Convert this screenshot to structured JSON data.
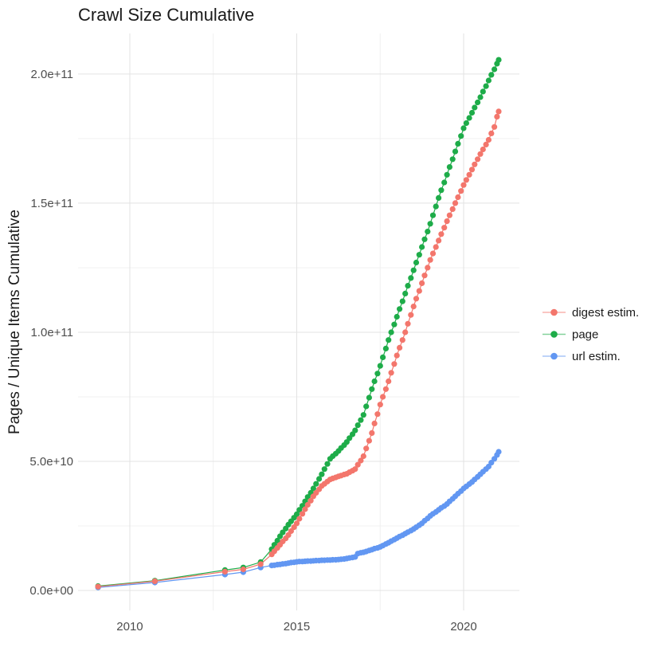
{
  "header": {
    "title": "Crawl Size Cumulative"
  },
  "chart_data": {
    "type": "scatter",
    "title": "Crawl Size Cumulative",
    "xlabel": "",
    "ylabel": "Pages / Unique Items Cumulative",
    "units_note": "values in billions (1e9) of pages / unique items",
    "xlim": [
      2008.45,
      2021.67
    ],
    "ylim_e9": [
      -7.7,
      215.7
    ],
    "x_ticks": [
      {
        "value": 2010,
        "label": "2010"
      },
      {
        "value": 2015,
        "label": "2015"
      },
      {
        "value": 2020,
        "label": "2020"
      }
    ],
    "y_ticks": [
      {
        "value_e9": 0,
        "label": "0.0e+00"
      },
      {
        "value_e9": 50,
        "label": "5.0e+10"
      },
      {
        "value_e9": 100,
        "label": "1.0e+11"
      },
      {
        "value_e9": 150,
        "label": "1.5e+11"
      },
      {
        "value_e9": 200,
        "label": "2.0e+11"
      }
    ],
    "x_minor": [
      2012.5,
      2017.5
    ],
    "y_minor_e9": [
      25,
      75,
      125,
      175
    ],
    "grid": {
      "show": true,
      "major_color": "#e3e3e3",
      "minor_color": "#f0f0f0"
    },
    "legend_position": "right",
    "legend": [
      {
        "label": "digest estim.",
        "color": "#f3766c"
      },
      {
        "label": "page",
        "color": "#1eac49"
      },
      {
        "label": "url estim.",
        "color": "#6297f2"
      }
    ],
    "series": [
      {
        "name": "url estim.",
        "color": "#6297f2",
        "points": [
          [
            2009.05,
            1.2
          ],
          [
            2010.75,
            3.1
          ],
          [
            2012.85,
            6.2
          ],
          [
            2013.4,
            7.1
          ],
          [
            2013.92,
            8.9
          ],
          [
            2014.25,
            9.7
          ],
          [
            2014.33,
            9.8
          ],
          [
            2014.42,
            10.0
          ],
          [
            2014.5,
            10.1
          ],
          [
            2014.58,
            10.3
          ],
          [
            2014.67,
            10.4
          ],
          [
            2014.75,
            10.6
          ],
          [
            2014.83,
            10.8
          ],
          [
            2014.92,
            10.9
          ],
          [
            2015.0,
            11.1
          ],
          [
            2015.08,
            11.2
          ],
          [
            2015.17,
            11.2
          ],
          [
            2015.25,
            11.3
          ],
          [
            2015.33,
            11.4
          ],
          [
            2015.42,
            11.4
          ],
          [
            2015.5,
            11.5
          ],
          [
            2015.58,
            11.6
          ],
          [
            2015.67,
            11.6
          ],
          [
            2015.75,
            11.7
          ],
          [
            2015.83,
            11.7
          ],
          [
            2015.92,
            11.8
          ],
          [
            2016.0,
            11.8
          ],
          [
            2016.08,
            11.9
          ],
          [
            2016.17,
            11.9
          ],
          [
            2016.25,
            12.0
          ],
          [
            2016.33,
            12.1
          ],
          [
            2016.42,
            12.2
          ],
          [
            2016.5,
            12.4
          ],
          [
            2016.58,
            12.6
          ],
          [
            2016.67,
            12.8
          ],
          [
            2016.75,
            13.0
          ],
          [
            2016.83,
            14.3
          ],
          [
            2016.92,
            14.6
          ],
          [
            2017.0,
            14.8
          ],
          [
            2017.08,
            15.1
          ],
          [
            2017.17,
            15.5
          ],
          [
            2017.25,
            15.8
          ],
          [
            2017.33,
            16.2
          ],
          [
            2017.42,
            16.5
          ],
          [
            2017.5,
            16.9
          ],
          [
            2017.58,
            17.4
          ],
          [
            2017.67,
            18.0
          ],
          [
            2017.75,
            18.5
          ],
          [
            2017.83,
            19.1
          ],
          [
            2017.92,
            19.7
          ],
          [
            2018.0,
            20.3
          ],
          [
            2018.08,
            20.9
          ],
          [
            2018.17,
            21.4
          ],
          [
            2018.25,
            22.0
          ],
          [
            2018.33,
            22.6
          ],
          [
            2018.42,
            23.2
          ],
          [
            2018.5,
            23.8
          ],
          [
            2018.58,
            24.5
          ],
          [
            2018.67,
            25.3
          ],
          [
            2018.75,
            26.0
          ],
          [
            2018.83,
            27.0
          ],
          [
            2018.92,
            27.9
          ],
          [
            2019.0,
            28.9
          ],
          [
            2019.08,
            29.7
          ],
          [
            2019.17,
            30.4
          ],
          [
            2019.25,
            31.2
          ],
          [
            2019.33,
            32.0
          ],
          [
            2019.42,
            32.7
          ],
          [
            2019.5,
            33.5
          ],
          [
            2019.58,
            34.5
          ],
          [
            2019.67,
            35.5
          ],
          [
            2019.75,
            36.5
          ],
          [
            2019.83,
            37.5
          ],
          [
            2019.92,
            38.5
          ],
          [
            2020.0,
            39.5
          ],
          [
            2020.08,
            40.3
          ],
          [
            2020.17,
            41.2
          ],
          [
            2020.25,
            42.0
          ],
          [
            2020.33,
            43.0
          ],
          [
            2020.42,
            44.0
          ],
          [
            2020.5,
            45.0
          ],
          [
            2020.58,
            46.0
          ],
          [
            2020.67,
            47.0
          ],
          [
            2020.75,
            48.0
          ],
          [
            2020.83,
            49.5
          ],
          [
            2020.92,
            51.0
          ],
          [
            2021.0,
            52.5
          ],
          [
            2021.05,
            53.7
          ]
        ]
      },
      {
        "name": "page",
        "color": "#1eac49",
        "points": [
          [
            2009.05,
            1.7
          ],
          [
            2010.75,
            3.8
          ],
          [
            2012.85,
            7.9
          ],
          [
            2013.4,
            8.9
          ],
          [
            2013.92,
            11.0
          ],
          [
            2014.25,
            16.0
          ],
          [
            2014.33,
            17.7
          ],
          [
            2014.42,
            19.3
          ],
          [
            2014.5,
            21.0
          ],
          [
            2014.58,
            22.5
          ],
          [
            2014.67,
            24.0
          ],
          [
            2014.75,
            25.5
          ],
          [
            2014.83,
            26.8
          ],
          [
            2014.92,
            28.2
          ],
          [
            2015.0,
            29.5
          ],
          [
            2015.08,
            31.2
          ],
          [
            2015.17,
            32.8
          ],
          [
            2015.25,
            34.5
          ],
          [
            2015.33,
            36.2
          ],
          [
            2015.42,
            37.8
          ],
          [
            2015.5,
            39.5
          ],
          [
            2015.58,
            41.3
          ],
          [
            2015.67,
            43.2
          ],
          [
            2015.75,
            45.0
          ],
          [
            2015.83,
            47.0
          ],
          [
            2015.92,
            49.0
          ],
          [
            2016.0,
            51.0
          ],
          [
            2016.08,
            52.0
          ],
          [
            2016.17,
            53.0
          ],
          [
            2016.25,
            54.0
          ],
          [
            2016.33,
            55.2
          ],
          [
            2016.42,
            56.3
          ],
          [
            2016.5,
            57.5
          ],
          [
            2016.58,
            59.0
          ],
          [
            2016.67,
            60.5
          ],
          [
            2016.75,
            62.0
          ],
          [
            2016.83,
            64.0
          ],
          [
            2016.92,
            66.0
          ],
          [
            2017.0,
            68.0
          ],
          [
            2017.08,
            71.3
          ],
          [
            2017.17,
            74.7
          ],
          [
            2017.25,
            78.0
          ],
          [
            2017.33,
            81.0
          ],
          [
            2017.42,
            84.0
          ],
          [
            2017.5,
            87.0
          ],
          [
            2017.58,
            90.3
          ],
          [
            2017.67,
            93.7
          ],
          [
            2017.75,
            97.0
          ],
          [
            2017.83,
            100.0
          ],
          [
            2017.92,
            103.0
          ],
          [
            2018.0,
            106.0
          ],
          [
            2018.08,
            109.0
          ],
          [
            2018.17,
            112.0
          ],
          [
            2018.25,
            115.0
          ],
          [
            2018.33,
            118.0
          ],
          [
            2018.42,
            121.0
          ],
          [
            2018.5,
            124.0
          ],
          [
            2018.58,
            127.0
          ],
          [
            2018.67,
            130.0
          ],
          [
            2018.75,
            133.0
          ],
          [
            2018.83,
            136.0
          ],
          [
            2018.92,
            139.0
          ],
          [
            2019.0,
            142.0
          ],
          [
            2019.08,
            145.3
          ],
          [
            2019.17,
            148.7
          ],
          [
            2019.25,
            152.0
          ],
          [
            2019.33,
            155.0
          ],
          [
            2019.42,
            158.0
          ],
          [
            2019.5,
            161.0
          ],
          [
            2019.58,
            164.0
          ],
          [
            2019.67,
            167.0
          ],
          [
            2019.75,
            170.0
          ],
          [
            2019.83,
            173.0
          ],
          [
            2019.92,
            176.0
          ],
          [
            2020.0,
            179.0
          ],
          [
            2020.08,
            181.0
          ],
          [
            2020.17,
            183.0
          ],
          [
            2020.25,
            185.0
          ],
          [
            2020.33,
            187.0
          ],
          [
            2020.42,
            189.0
          ],
          [
            2020.5,
            191.0
          ],
          [
            2020.58,
            193.2
          ],
          [
            2020.67,
            195.3
          ],
          [
            2020.75,
            197.5
          ],
          [
            2020.83,
            199.7
          ],
          [
            2020.92,
            201.8
          ],
          [
            2021.0,
            204.0
          ],
          [
            2021.05,
            205.5
          ]
        ]
      },
      {
        "name": "digest estim.",
        "color": "#f3766c",
        "points": [
          [
            2009.05,
            1.5
          ],
          [
            2010.75,
            3.6
          ],
          [
            2012.85,
            7.3
          ],
          [
            2013.4,
            8.2
          ],
          [
            2013.92,
            10.2
          ],
          [
            2014.25,
            14.0
          ],
          [
            2014.33,
            15.2
          ],
          [
            2014.42,
            16.5
          ],
          [
            2014.5,
            17.7
          ],
          [
            2014.58,
            19.0
          ],
          [
            2014.67,
            20.2
          ],
          [
            2014.75,
            21.5
          ],
          [
            2014.83,
            23.0
          ],
          [
            2014.92,
            24.5
          ],
          [
            2015.0,
            26.0
          ],
          [
            2015.08,
            27.8
          ],
          [
            2015.17,
            29.7
          ],
          [
            2015.25,
            31.5
          ],
          [
            2015.33,
            33.2
          ],
          [
            2015.42,
            34.8
          ],
          [
            2015.5,
            36.5
          ],
          [
            2015.58,
            37.8
          ],
          [
            2015.67,
            39.2
          ],
          [
            2015.75,
            40.5
          ],
          [
            2015.83,
            41.3
          ],
          [
            2015.92,
            42.2
          ],
          [
            2016.0,
            43.0
          ],
          [
            2016.08,
            43.4
          ],
          [
            2016.17,
            43.8
          ],
          [
            2016.25,
            44.2
          ],
          [
            2016.33,
            44.5
          ],
          [
            2016.42,
            44.9
          ],
          [
            2016.5,
            45.2
          ],
          [
            2016.58,
            45.8
          ],
          [
            2016.67,
            46.4
          ],
          [
            2016.75,
            47.0
          ],
          [
            2016.83,
            48.7
          ],
          [
            2016.92,
            50.3
          ],
          [
            2017.0,
            52.0
          ],
          [
            2017.08,
            55.0
          ],
          [
            2017.17,
            58.0
          ],
          [
            2017.25,
            61.0
          ],
          [
            2017.33,
            64.7
          ],
          [
            2017.42,
            68.3
          ],
          [
            2017.5,
            72.0
          ],
          [
            2017.58,
            75.0
          ],
          [
            2017.67,
            78.0
          ],
          [
            2017.75,
            81.0
          ],
          [
            2017.83,
            84.3
          ],
          [
            2017.92,
            87.7
          ],
          [
            2018.0,
            91.0
          ],
          [
            2018.08,
            94.0
          ],
          [
            2018.17,
            97.0
          ],
          [
            2018.25,
            100.0
          ],
          [
            2018.33,
            103.3
          ],
          [
            2018.42,
            106.7
          ],
          [
            2018.5,
            110.0
          ],
          [
            2018.58,
            113.0
          ],
          [
            2018.67,
            116.0
          ],
          [
            2018.75,
            119.0
          ],
          [
            2018.83,
            122.0
          ],
          [
            2018.92,
            125.0
          ],
          [
            2019.0,
            128.0
          ],
          [
            2019.08,
            130.5
          ],
          [
            2019.17,
            133.0
          ],
          [
            2019.25,
            135.5
          ],
          [
            2019.33,
            138.0
          ],
          [
            2019.42,
            140.5
          ],
          [
            2019.5,
            143.0
          ],
          [
            2019.58,
            145.3
          ],
          [
            2019.67,
            147.7
          ],
          [
            2019.75,
            150.0
          ],
          [
            2019.83,
            152.3
          ],
          [
            2019.92,
            154.7
          ],
          [
            2020.0,
            157.0
          ],
          [
            2020.08,
            159.0
          ],
          [
            2020.17,
            161.0
          ],
          [
            2020.25,
            163.0
          ],
          [
            2020.33,
            165.0
          ],
          [
            2020.42,
            167.0
          ],
          [
            2020.5,
            169.0
          ],
          [
            2020.58,
            170.8
          ],
          [
            2020.67,
            172.7
          ],
          [
            2020.75,
            174.5
          ],
          [
            2020.83,
            177.0
          ],
          [
            2020.92,
            179.5
          ],
          [
            2021.0,
            183.5
          ],
          [
            2021.05,
            185.5
          ]
        ]
      }
    ]
  }
}
